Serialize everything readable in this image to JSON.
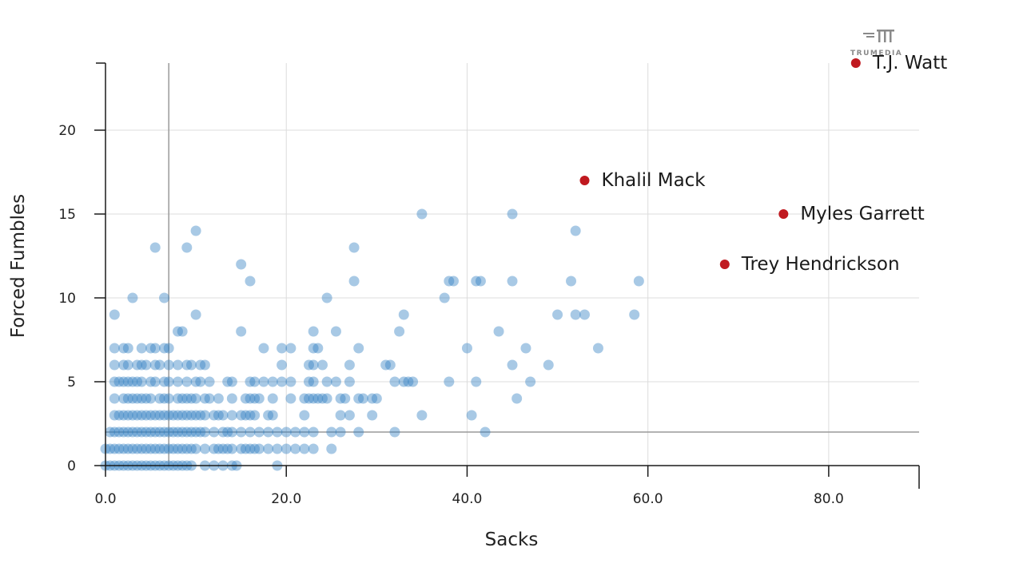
{
  "chart_data": {
    "type": "scatter",
    "xlabel": "Sacks",
    "ylabel": "Forced Fumbles",
    "xlim": [
      0,
      90
    ],
    "ylim": [
      0,
      24
    ],
    "x_ticks": [
      "0.0",
      "20.0",
      "40.0",
      "60.0",
      "80.0"
    ],
    "x_tick_values": [
      0,
      20,
      40,
      60,
      80
    ],
    "y_ticks": [
      "0",
      "5",
      "10",
      "15",
      "20"
    ],
    "y_tick_values": [
      0,
      5,
      10,
      15,
      20
    ],
    "grid": true,
    "reference_lines": {
      "x": 7,
      "y": 2
    },
    "colors": {
      "points": "#2f7fc1",
      "highlight": "#c0191f"
    },
    "highlighted": [
      {
        "label": "T.J. Watt",
        "x": 83,
        "y": 24
      },
      {
        "label": "Khalil Mack",
        "x": 53,
        "y": 17
      },
      {
        "label": "Myles Garrett",
        "x": 75,
        "y": 15
      },
      {
        "label": "Trey Hendrickson",
        "x": 68.5,
        "y": 12
      }
    ],
    "points": [
      [
        0,
        0
      ],
      [
        0.5,
        0
      ],
      [
        1,
        0
      ],
      [
        1.5,
        0
      ],
      [
        2,
        0
      ],
      [
        2.5,
        0
      ],
      [
        3,
        0
      ],
      [
        3.5,
        0
      ],
      [
        4,
        0
      ],
      [
        4.5,
        0
      ],
      [
        5,
        0
      ],
      [
        5.5,
        0
      ],
      [
        6,
        0
      ],
      [
        6.5,
        0
      ],
      [
        7,
        0
      ],
      [
        7.5,
        0
      ],
      [
        8,
        0
      ],
      [
        8.5,
        0
      ],
      [
        9,
        0
      ],
      [
        9.5,
        0
      ],
      [
        11,
        0
      ],
      [
        12,
        0
      ],
      [
        13,
        0
      ],
      [
        14,
        0
      ],
      [
        14.5,
        0
      ],
      [
        19,
        0
      ],
      [
        0,
        1
      ],
      [
        0.5,
        1
      ],
      [
        1,
        1
      ],
      [
        1.5,
        1
      ],
      [
        2,
        1
      ],
      [
        2.5,
        1
      ],
      [
        3,
        1
      ],
      [
        3.5,
        1
      ],
      [
        4,
        1
      ],
      [
        4.5,
        1
      ],
      [
        5,
        1
      ],
      [
        5.5,
        1
      ],
      [
        6,
        1
      ],
      [
        6.5,
        1
      ],
      [
        7,
        1
      ],
      [
        7.5,
        1
      ],
      [
        8,
        1
      ],
      [
        8.5,
        1
      ],
      [
        9,
        1
      ],
      [
        9.5,
        1
      ],
      [
        10,
        1
      ],
      [
        11,
        1
      ],
      [
        12,
        1
      ],
      [
        12.5,
        1
      ],
      [
        13,
        1
      ],
      [
        13.5,
        1
      ],
      [
        14,
        1
      ],
      [
        15,
        1
      ],
      [
        15.5,
        1
      ],
      [
        16,
        1
      ],
      [
        16.5,
        1
      ],
      [
        17,
        1
      ],
      [
        18,
        1
      ],
      [
        19,
        1
      ],
      [
        20,
        1
      ],
      [
        21,
        1
      ],
      [
        22,
        1
      ],
      [
        23,
        1
      ],
      [
        25,
        1
      ],
      [
        0.5,
        2
      ],
      [
        1,
        2
      ],
      [
        1.5,
        2
      ],
      [
        2,
        2
      ],
      [
        2.5,
        2
      ],
      [
        3,
        2
      ],
      [
        3.5,
        2
      ],
      [
        4,
        2
      ],
      [
        4.5,
        2
      ],
      [
        5,
        2
      ],
      [
        5.5,
        2
      ],
      [
        6,
        2
      ],
      [
        6.5,
        2
      ],
      [
        7,
        2
      ],
      [
        7.5,
        2
      ],
      [
        8,
        2
      ],
      [
        8.5,
        2
      ],
      [
        9,
        2
      ],
      [
        9.5,
        2
      ],
      [
        10,
        2
      ],
      [
        10.5,
        2
      ],
      [
        11,
        2
      ],
      [
        12,
        2
      ],
      [
        13,
        2
      ],
      [
        13.5,
        2
      ],
      [
        14,
        2
      ],
      [
        15,
        2
      ],
      [
        16,
        2
      ],
      [
        17,
        2
      ],
      [
        18,
        2
      ],
      [
        19,
        2
      ],
      [
        20,
        2
      ],
      [
        21,
        2
      ],
      [
        22,
        2
      ],
      [
        23,
        2
      ],
      [
        25,
        2
      ],
      [
        26,
        2
      ],
      [
        28,
        2
      ],
      [
        32,
        2
      ],
      [
        42,
        2
      ],
      [
        1,
        3
      ],
      [
        1.5,
        3
      ],
      [
        2,
        3
      ],
      [
        2.5,
        3
      ],
      [
        3,
        3
      ],
      [
        3.5,
        3
      ],
      [
        4,
        3
      ],
      [
        4.5,
        3
      ],
      [
        5,
        3
      ],
      [
        5.5,
        3
      ],
      [
        6,
        3
      ],
      [
        6.5,
        3
      ],
      [
        7,
        3
      ],
      [
        7.5,
        3
      ],
      [
        8,
        3
      ],
      [
        8.5,
        3
      ],
      [
        9,
        3
      ],
      [
        9.5,
        3
      ],
      [
        10,
        3
      ],
      [
        10.5,
        3
      ],
      [
        11,
        3
      ],
      [
        12,
        3
      ],
      [
        12.5,
        3
      ],
      [
        13,
        3
      ],
      [
        14,
        3
      ],
      [
        15,
        3
      ],
      [
        15.5,
        3
      ],
      [
        16,
        3
      ],
      [
        16.5,
        3
      ],
      [
        18,
        3
      ],
      [
        18.5,
        3
      ],
      [
        22,
        3
      ],
      [
        26,
        3
      ],
      [
        27,
        3
      ],
      [
        29.5,
        3
      ],
      [
        35,
        3
      ],
      [
        40.5,
        3
      ],
      [
        1,
        4
      ],
      [
        2,
        4
      ],
      [
        2.5,
        4
      ],
      [
        3,
        4
      ],
      [
        3.5,
        4
      ],
      [
        4,
        4
      ],
      [
        4.5,
        4
      ],
      [
        5,
        4
      ],
      [
        6,
        4
      ],
      [
        6.5,
        4
      ],
      [
        7,
        4
      ],
      [
        8,
        4
      ],
      [
        8.5,
        4
      ],
      [
        9,
        4
      ],
      [
        9.5,
        4
      ],
      [
        10,
        4
      ],
      [
        11,
        4
      ],
      [
        11.5,
        4
      ],
      [
        12.5,
        4
      ],
      [
        14,
        4
      ],
      [
        15.5,
        4
      ],
      [
        16,
        4
      ],
      [
        16.5,
        4
      ],
      [
        17,
        4
      ],
      [
        18.5,
        4
      ],
      [
        20.5,
        4
      ],
      [
        22,
        4
      ],
      [
        22.5,
        4
      ],
      [
        23,
        4
      ],
      [
        23.5,
        4
      ],
      [
        24,
        4
      ],
      [
        24.5,
        4
      ],
      [
        26,
        4
      ],
      [
        26.5,
        4
      ],
      [
        28,
        4
      ],
      [
        28.5,
        4
      ],
      [
        29.5,
        4
      ],
      [
        30,
        4
      ],
      [
        45.5,
        4
      ],
      [
        1,
        5
      ],
      [
        1.5,
        5
      ],
      [
        2,
        5
      ],
      [
        2.5,
        5
      ],
      [
        3,
        5
      ],
      [
        3.5,
        5
      ],
      [
        4,
        5
      ],
      [
        5,
        5
      ],
      [
        5.5,
        5
      ],
      [
        6.5,
        5
      ],
      [
        7,
        5
      ],
      [
        8,
        5
      ],
      [
        9,
        5
      ],
      [
        10,
        5
      ],
      [
        10.5,
        5
      ],
      [
        11.5,
        5
      ],
      [
        13.5,
        5
      ],
      [
        14,
        5
      ],
      [
        16,
        5
      ],
      [
        16.5,
        5
      ],
      [
        17.5,
        5
      ],
      [
        18.5,
        5
      ],
      [
        19.5,
        5
      ],
      [
        20.5,
        5
      ],
      [
        22.5,
        5
      ],
      [
        23,
        5
      ],
      [
        24.5,
        5
      ],
      [
        25.5,
        5
      ],
      [
        27,
        5
      ],
      [
        32,
        5
      ],
      [
        33,
        5
      ],
      [
        33.5,
        5
      ],
      [
        34,
        5
      ],
      [
        38,
        5
      ],
      [
        41,
        5
      ],
      [
        47,
        5
      ],
      [
        1,
        6
      ],
      [
        2,
        6
      ],
      [
        2.5,
        6
      ],
      [
        3.5,
        6
      ],
      [
        4,
        6
      ],
      [
        4.5,
        6
      ],
      [
        5.5,
        6
      ],
      [
        6,
        6
      ],
      [
        7,
        6
      ],
      [
        8,
        6
      ],
      [
        9,
        6
      ],
      [
        9.5,
        6
      ],
      [
        10.5,
        6
      ],
      [
        11,
        6
      ],
      [
        19.5,
        6
      ],
      [
        22.5,
        6
      ],
      [
        23,
        6
      ],
      [
        24,
        6
      ],
      [
        27,
        6
      ],
      [
        31,
        6
      ],
      [
        31.5,
        6
      ],
      [
        45,
        6
      ],
      [
        49,
        6
      ],
      [
        1,
        7
      ],
      [
        2,
        7
      ],
      [
        2.5,
        7
      ],
      [
        4,
        7
      ],
      [
        5,
        7
      ],
      [
        5.5,
        7
      ],
      [
        6.5,
        7
      ],
      [
        7,
        7
      ],
      [
        17.5,
        7
      ],
      [
        19.5,
        7
      ],
      [
        20.5,
        7
      ],
      [
        23,
        7
      ],
      [
        23.5,
        7
      ],
      [
        28,
        7
      ],
      [
        40,
        7
      ],
      [
        46.5,
        7
      ],
      [
        54.5,
        7
      ],
      [
        8,
        8
      ],
      [
        8.5,
        8
      ],
      [
        15,
        8
      ],
      [
        23,
        8
      ],
      [
        25.5,
        8
      ],
      [
        32.5,
        8
      ],
      [
        43.5,
        8
      ],
      [
        1,
        9
      ],
      [
        10,
        9
      ],
      [
        33,
        9
      ],
      [
        50,
        9
      ],
      [
        52,
        9
      ],
      [
        53,
        9
      ],
      [
        58.5,
        9
      ],
      [
        3,
        10
      ],
      [
        6.5,
        10
      ],
      [
        24.5,
        10
      ],
      [
        37.5,
        10
      ],
      [
        15,
        12
      ],
      [
        16,
        11
      ],
      [
        27.5,
        11
      ],
      [
        38,
        11
      ],
      [
        38.5,
        11
      ],
      [
        41,
        11
      ],
      [
        41.5,
        11
      ],
      [
        45,
        11
      ],
      [
        51.5,
        11
      ],
      [
        59,
        11
      ],
      [
        5.5,
        13
      ],
      [
        9,
        13
      ],
      [
        27.5,
        13
      ],
      [
        10,
        14
      ],
      [
        52,
        14
      ],
      [
        35,
        15
      ],
      [
        45,
        15
      ]
    ]
  }
}
